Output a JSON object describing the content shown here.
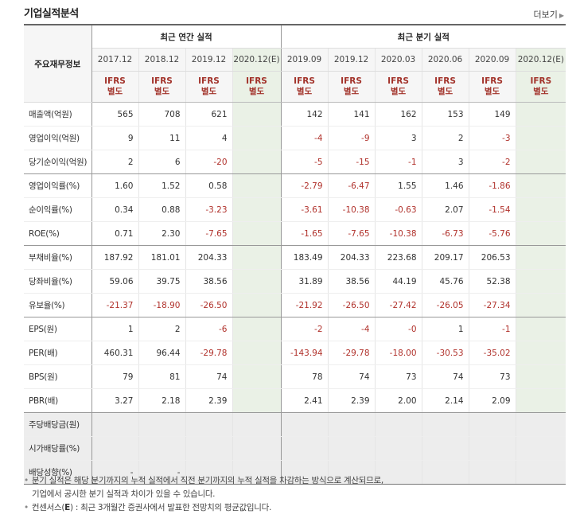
{
  "title": "기업실적분석",
  "more_label": "더보기",
  "corner_label": "주요재무정보",
  "group_annual": "최근 연간 실적",
  "group_quarter": "최근 분기 실적",
  "periods": [
    "2017.12",
    "2018.12",
    "2019.12",
    "2020.12(E)",
    "2019.09",
    "2019.12",
    "2020.03",
    "2020.06",
    "2020.09",
    "2020.12(E)"
  ],
  "standards": [
    [
      "IFRS",
      "별도"
    ],
    [
      "IFRS",
      "별도"
    ],
    [
      "IFRS",
      "별도"
    ],
    [
      "IFRS",
      "별도"
    ],
    [
      "IFRS",
      "별도"
    ],
    [
      "IFRS",
      "별도"
    ],
    [
      "IFRS",
      "별도"
    ],
    [
      "IFRS",
      "별도"
    ],
    [
      "IFRS",
      "별도"
    ],
    [
      "IFRS",
      "별도"
    ]
  ],
  "rows": [
    {
      "label": "매출액(억원)",
      "values": [
        "565",
        "708",
        "621",
        "",
        "142",
        "141",
        "162",
        "153",
        "149",
        ""
      ]
    },
    {
      "label": "영업이익(억원)",
      "values": [
        "9",
        "11",
        "4",
        "",
        "-4",
        "-9",
        "3",
        "2",
        "-3",
        ""
      ]
    },
    {
      "label": "당기순이익(억원)",
      "values": [
        "2",
        "6",
        "-20",
        "",
        "-5",
        "-15",
        "-1",
        "3",
        "-2",
        ""
      ]
    },
    {
      "label": "영업이익률(%)",
      "values": [
        "1.60",
        "1.52",
        "0.58",
        "",
        "-2.79",
        "-6.47",
        "1.55",
        "1.46",
        "-1.86",
        ""
      ]
    },
    {
      "label": "순이익률(%)",
      "values": [
        "0.34",
        "0.88",
        "-3.23",
        "",
        "-3.61",
        "-10.38",
        "-0.63",
        "2.07",
        "-1.54",
        ""
      ]
    },
    {
      "label": "ROE(%)",
      "values": [
        "0.71",
        "2.30",
        "-7.65",
        "",
        "-1.65",
        "-7.65",
        "-10.38",
        "-6.73",
        "-5.76",
        ""
      ]
    },
    {
      "label": "부채비율(%)",
      "values": [
        "187.92",
        "181.01",
        "204.33",
        "",
        "183.49",
        "204.33",
        "223.68",
        "209.17",
        "206.53",
        ""
      ]
    },
    {
      "label": "당좌비율(%)",
      "values": [
        "59.06",
        "39.75",
        "38.56",
        "",
        "31.89",
        "38.56",
        "44.19",
        "45.76",
        "52.38",
        ""
      ]
    },
    {
      "label": "유보율(%)",
      "values": [
        "-21.37",
        "-18.90",
        "-26.50",
        "",
        "-21.92",
        "-26.50",
        "-27.42",
        "-26.05",
        "-27.34",
        ""
      ]
    },
    {
      "label": "EPS(원)",
      "values": [
        "1",
        "2",
        "-6",
        "",
        "-2",
        "-4",
        "-0",
        "1",
        "-1",
        ""
      ]
    },
    {
      "label": "PER(배)",
      "values": [
        "460.31",
        "96.44",
        "-29.78",
        "",
        "-143.94",
        "-29.78",
        "-18.00",
        "-30.53",
        "-35.02",
        ""
      ]
    },
    {
      "label": "BPS(원)",
      "values": [
        "79",
        "81",
        "74",
        "",
        "78",
        "74",
        "73",
        "74",
        "73",
        ""
      ]
    },
    {
      "label": "PBR(배)",
      "values": [
        "3.27",
        "2.18",
        "2.39",
        "",
        "2.41",
        "2.39",
        "2.00",
        "2.14",
        "2.09",
        ""
      ]
    },
    {
      "label": "주당배당금(원)",
      "values": [
        "",
        "",
        "",
        "",
        "",
        "",
        "",
        "",
        "",
        ""
      ]
    },
    {
      "label": "시가배당률(%)",
      "values": [
        "",
        "",
        "",
        "",
        "",
        "",
        "",
        "",
        "",
        ""
      ]
    },
    {
      "label": "배당성향(%)",
      "values": [
        "-",
        "-",
        "",
        "",
        "",
        "",
        "",
        "",
        "",
        ""
      ]
    }
  ],
  "notes": {
    "line1": "분기 실적은 해당 분기까지의 누적 실적에서 직전 분기까지의 누적 실적을 차감하는 방식으로 계산되므로,",
    "line2": "기업에서 공시한 분기 실적과 차이가 있을 수 있습니다.",
    "line3_prefix": "컨센서스(",
    "line3_mark": "E",
    "line3_suffix": ") : 최근 3개월간 증권사에서 발표한 전망치의 평균값입니다."
  },
  "colors": {
    "negative": "#b0312b",
    "standard": "#a2322a",
    "estimate_bg": "#eaf1e6",
    "dividend_bg": "#ededed"
  }
}
